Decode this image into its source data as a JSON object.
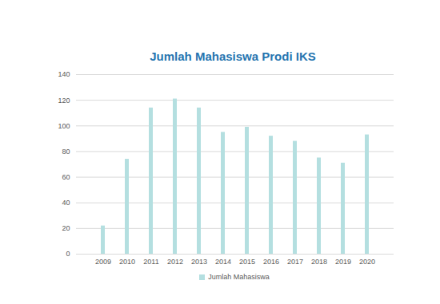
{
  "chart_data": {
    "type": "bar",
    "title": "Jumlah Mahasiswa Prodi IKS",
    "categories": [
      "2009",
      "2010",
      "2011",
      "2012",
      "2013",
      "2014",
      "2015",
      "2016",
      "2017",
      "2018",
      "2019",
      "2020"
    ],
    "series": [
      {
        "name": "Jumlah Mahasiswa",
        "color": "#b4dfe0",
        "values": [
          22,
          74,
          114,
          121,
          114,
          95,
          99,
          92,
          88,
          75,
          71,
          93
        ]
      }
    ],
    "ylim": [
      0,
      140
    ],
    "yticks": [
      0,
      20,
      40,
      60,
      80,
      100,
      120,
      140
    ],
    "grid": true,
    "legend": "bottom"
  }
}
